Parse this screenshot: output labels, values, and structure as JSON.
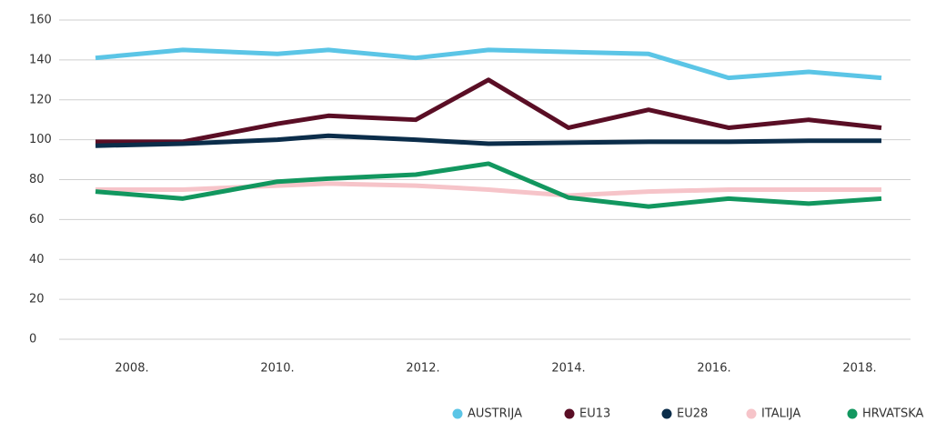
{
  "chart_data": {
    "type": "line",
    "x": [
      2007.5,
      2008.7,
      2010,
      2010.7,
      2011.9,
      2012.9,
      2014,
      2015.1,
      2016.2,
      2017.3,
      2018.3
    ],
    "xlim": [
      2007,
      2018.7
    ],
    "xticks": [
      {
        "value": 2008,
        "label": "2008."
      },
      {
        "value": 2010,
        "label": "2010."
      },
      {
        "value": 2012,
        "label": "2012."
      },
      {
        "value": 2014,
        "label": "2014."
      },
      {
        "value": 2016,
        "label": "2016."
      },
      {
        "value": 2018,
        "label": "2018."
      }
    ],
    "ylim": [
      0,
      160
    ],
    "yticks": [
      0,
      20,
      40,
      60,
      80,
      100,
      120,
      140,
      160
    ],
    "grid": true,
    "series": [
      {
        "name": "AUSTRIJA",
        "color": "#5bc5e6",
        "values": [
          141,
          145,
          143,
          145,
          141,
          145,
          144,
          143,
          131,
          134,
          131
        ]
      },
      {
        "name": "EU13",
        "color": "#5a0e25",
        "values": [
          99,
          99,
          108,
          112,
          110,
          130,
          106,
          115,
          106,
          110,
          106
        ]
      },
      {
        "name": "EU28",
        "color": "#0b2d4a",
        "values": [
          97,
          98,
          100,
          102,
          100,
          98,
          98.5,
          99,
          99,
          99.5,
          99.5
        ]
      },
      {
        "name": "ITALIJA",
        "color": "#f6c4c9",
        "values": [
          75,
          75,
          77,
          78,
          77,
          75,
          72,
          74,
          75,
          75,
          75
        ]
      },
      {
        "name": "HRVATSKA",
        "color": "#12975f",
        "values": [
          74,
          70.5,
          79,
          80.5,
          82.5,
          88,
          71,
          66.5,
          70.5,
          68,
          70.5
        ]
      }
    ]
  }
}
